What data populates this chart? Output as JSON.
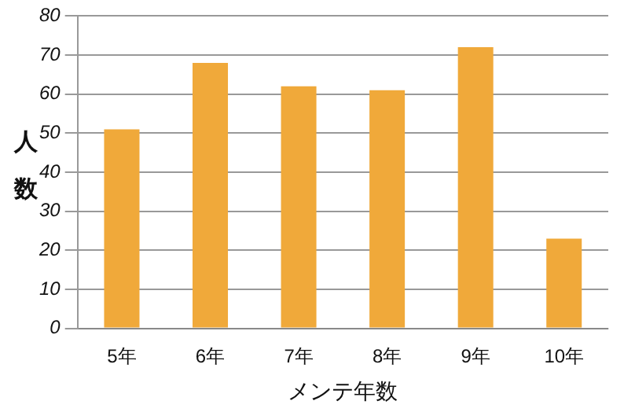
{
  "chart_data": {
    "type": "bar",
    "xlabel": "メンテ年数",
    "ylabel": "人数",
    "categories": [
      "5年",
      "6年",
      "7年",
      "8年",
      "9年",
      "10年"
    ],
    "values": [
      51,
      68,
      62,
      61,
      72,
      23
    ],
    "color": "#f0a93a",
    "ylim": [
      0,
      80
    ],
    "yticks": [
      0,
      10,
      20,
      30,
      40,
      50,
      60,
      70,
      80
    ],
    "grid": "y",
    "legend": false
  }
}
